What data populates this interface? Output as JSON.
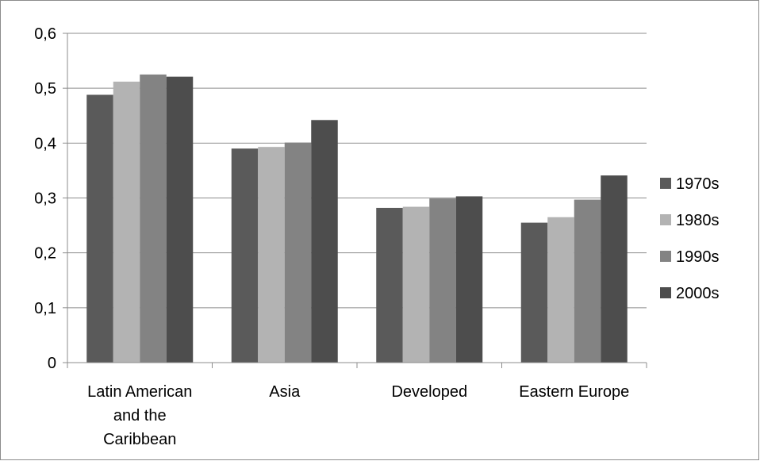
{
  "chart_data": {
    "type": "bar",
    "title": "",
    "xlabel": "",
    "ylabel": "",
    "categories": [
      "Latin American and the Caribbean",
      "Asia",
      "Developed",
      "Eastern Europe"
    ],
    "category_lines": [
      [
        "Latin American",
        "and the",
        "Caribbean"
      ],
      [
        "Asia"
      ],
      [
        "Developed"
      ],
      [
        "Eastern Europe"
      ]
    ],
    "series": [
      {
        "name": "1970s",
        "color": "#5a5a5a",
        "values": [
          0.488,
          0.39,
          0.282,
          0.255
        ]
      },
      {
        "name": "1980s",
        "color": "#b3b3b3",
        "values": [
          0.512,
          0.393,
          0.284,
          0.265
        ]
      },
      {
        "name": "1990s",
        "color": "#838383",
        "values": [
          0.525,
          0.401,
          0.299,
          0.297
        ]
      },
      {
        "name": "2000s",
        "color": "#4d4d4d",
        "values": [
          0.521,
          0.442,
          0.303,
          0.341
        ]
      }
    ],
    "ylim": [
      0,
      0.6
    ],
    "yticks": [
      0,
      0.1,
      0.2,
      0.3,
      0.4,
      0.5,
      0.6
    ],
    "ytick_labels": [
      "0",
      "0,1",
      "0,2",
      "0,3",
      "0,4",
      "0,5",
      "0,6"
    ],
    "grid": true,
    "legend_position": "right"
  }
}
